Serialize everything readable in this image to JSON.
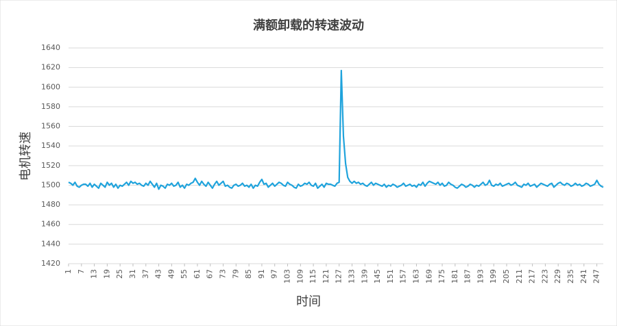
{
  "chart_data": {
    "type": "line",
    "title": "满额卸载的转速波动",
    "x_label": "时间",
    "y_label": "电机转速",
    "color": "#1fa3dc",
    "grid": true,
    "xlim": [
      1,
      250
    ],
    "ylim": [
      1420,
      1640
    ],
    "yticks": [
      1420,
      1440,
      1460,
      1480,
      1500,
      1520,
      1540,
      1560,
      1580,
      1600,
      1620,
      1640
    ],
    "xticks": [
      1,
      7,
      13,
      19,
      25,
      31,
      37,
      43,
      49,
      55,
      61,
      67,
      73,
      79,
      85,
      91,
      97,
      103,
      109,
      115,
      121,
      127,
      133,
      139,
      145,
      151,
      157,
      163,
      169,
      175,
      181,
      187,
      193,
      199,
      205,
      211,
      217,
      223,
      229,
      235,
      241,
      247
    ],
    "x": [
      1,
      2,
      3,
      4,
      5,
      6,
      7,
      8,
      9,
      10,
      11,
      12,
      13,
      14,
      15,
      16,
      17,
      18,
      19,
      20,
      21,
      22,
      23,
      24,
      25,
      26,
      27,
      28,
      29,
      30,
      31,
      32,
      33,
      34,
      35,
      36,
      37,
      38,
      39,
      40,
      41,
      42,
      43,
      44,
      45,
      46,
      47,
      48,
      49,
      50,
      51,
      52,
      53,
      54,
      55,
      56,
      57,
      58,
      59,
      60,
      61,
      62,
      63,
      64,
      65,
      66,
      67,
      68,
      69,
      70,
      71,
      72,
      73,
      74,
      75,
      76,
      77,
      78,
      79,
      80,
      81,
      82,
      83,
      84,
      85,
      86,
      87,
      88,
      89,
      90,
      91,
      92,
      93,
      94,
      95,
      96,
      97,
      98,
      99,
      100,
      101,
      102,
      103,
      104,
      105,
      106,
      107,
      108,
      109,
      110,
      111,
      112,
      113,
      114,
      115,
      116,
      117,
      118,
      119,
      120,
      121,
      122,
      123,
      124,
      125,
      126,
      127,
      128,
      129,
      130,
      131,
      132,
      133,
      134,
      135,
      136,
      137,
      138,
      139,
      140,
      141,
      142,
      143,
      144,
      145,
      146,
      147,
      148,
      149,
      150,
      151,
      152,
      153,
      154,
      155,
      156,
      157,
      158,
      159,
      160,
      161,
      162,
      163,
      164,
      165,
      166,
      167,
      168,
      169,
      170,
      171,
      172,
      173,
      174,
      175,
      176,
      177,
      178,
      179,
      180,
      181,
      182,
      183,
      184,
      185,
      186,
      187,
      188,
      189,
      190,
      191,
      192,
      193,
      194,
      195,
      196,
      197,
      198,
      199,
      200,
      201,
      202,
      203,
      204,
      205,
      206,
      207,
      208,
      209,
      210,
      211,
      212,
      213,
      214,
      215,
      216,
      217,
      218,
      219,
      220,
      221,
      222,
      223,
      224,
      225,
      226,
      227,
      228,
      229,
      230,
      231,
      232,
      233,
      234,
      235,
      236,
      237,
      238,
      239,
      240,
      241,
      242,
      243,
      244,
      245,
      246,
      247,
      248,
      249,
      250
    ],
    "values": [
      1503,
      1502,
      1500,
      1503,
      1499,
      1498,
      1500,
      1501,
      1501,
      1499,
      1502,
      1498,
      1501,
      1499,
      1497,
      1502,
      1500,
      1498,
      1503,
      1500,
      1502,
      1498,
      1501,
      1497,
      1500,
      1499,
      1501,
      1503,
      1500,
      1504,
      1502,
      1503,
      1501,
      1502,
      1500,
      1499,
      1502,
      1500,
      1504,
      1501,
      1498,
      1502,
      1496,
      1500,
      1499,
      1497,
      1501,
      1500,
      1502,
      1499,
      1500,
      1503,
      1498,
      1500,
      1497,
      1501,
      1500,
      1502,
      1503,
      1507,
      1503,
      1500,
      1504,
      1501,
      1499,
      1503,
      1500,
      1497,
      1501,
      1504,
      1500,
      1502,
      1504,
      1499,
      1500,
      1498,
      1497,
      1500,
      1501,
      1499,
      1500,
      1502,
      1499,
      1500,
      1498,
      1501,
      1497,
      1500,
      1499,
      1503,
      1506,
      1501,
      1502,
      1498,
      1500,
      1502,
      1499,
      1501,
      1503,
      1502,
      1500,
      1499,
      1503,
      1501,
      1500,
      1498,
      1497,
      1501,
      1499,
      1500,
      1502,
      1501,
      1503,
      1500,
      1499,
      1502,
      1497,
      1499,
      1501,
      1498,
      1502,
      1501,
      1501,
      1500,
      1499,
      1502,
      1503,
      1617,
      1550,
      1522,
      1508,
      1504,
      1502,
      1504,
      1502,
      1503,
      1501,
      1502,
      1500,
      1499,
      1501,
      1503,
      1500,
      1502,
      1501,
      1500,
      1499,
      1501,
      1498,
      1500,
      1499,
      1501,
      1500,
      1498,
      1499,
      1500,
      1502,
      1499,
      1500,
      1501,
      1499,
      1500,
      1498,
      1501,
      1500,
      1503,
      1499,
      1502,
      1504,
      1503,
      1502,
      1501,
      1503,
      1500,
      1502,
      1499,
      1500,
      1503,
      1501,
      1500,
      1498,
      1497,
      1499,
      1501,
      1500,
      1498,
      1499,
      1501,
      1500,
      1498,
      1500,
      1499,
      1501,
      1503,
      1500,
      1501,
      1505,
      1500,
      1499,
      1501,
      1500,
      1502,
      1499,
      1500,
      1501,
      1502,
      1500,
      1501,
      1503,
      1500,
      1499,
      1498,
      1501,
      1500,
      1502,
      1499,
      1500,
      1501,
      1498,
      1500,
      1502,
      1501,
      1500,
      1499,
      1501,
      1502,
      1498,
      1500,
      1502,
      1503,
      1501,
      1500,
      1502,
      1501,
      1499,
      1500,
      1502,
      1500,
      1501,
      1499,
      1500,
      1502,
      1501,
      1499,
      1500,
      1501,
      1505,
      1501,
      1499,
      1498
    ]
  }
}
